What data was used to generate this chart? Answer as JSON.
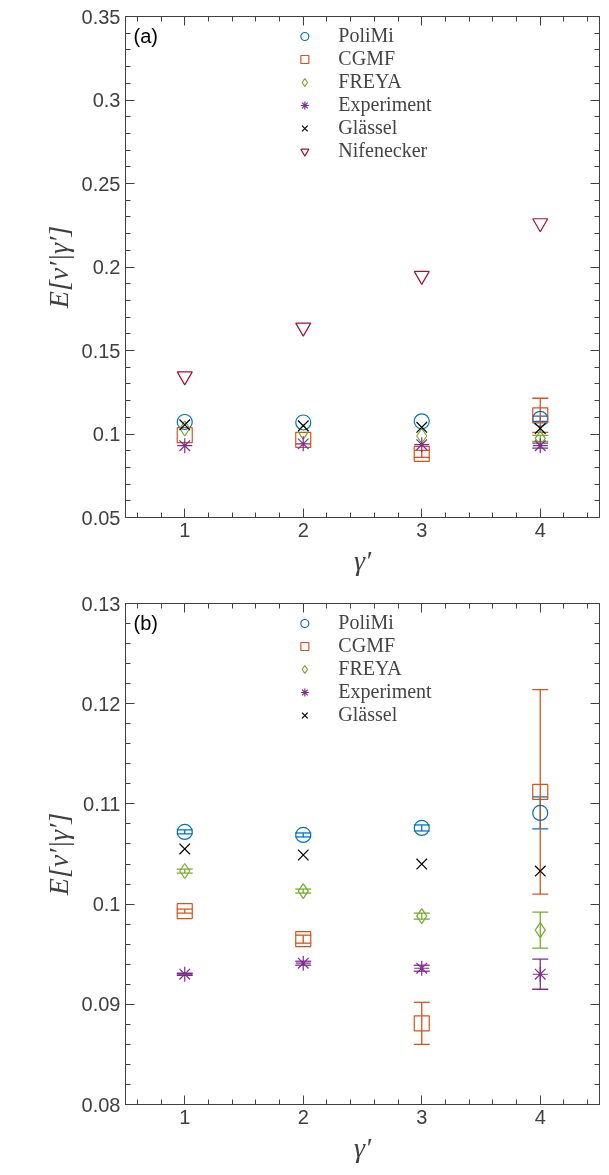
{
  "chart_data": [
    {
      "type": "scatter",
      "xlabel": "γ′",
      "ylabel": "E[ν′|γ′]",
      "annotations": [
        "(a)"
      ],
      "x": [
        1,
        2,
        3,
        4
      ],
      "xlim": [
        0.5,
        4.5
      ],
      "xticks": [
        1,
        2,
        3,
        4
      ],
      "ylim": [
        0.05,
        0.35
      ],
      "yticks": [
        0.05,
        0.1,
        0.15,
        0.2,
        0.25,
        0.3,
        0.35
      ],
      "grid": false,
      "legend": "top",
      "series": [
        {
          "name": "PoliMi",
          "color": "#0072bd",
          "marker": "circle",
          "values": [
            0.1072,
            0.1069,
            0.1076,
            0.1091
          ],
          "errors": [
            null,
            null,
            null,
            0.0016
          ]
        },
        {
          "name": "CGMF",
          "color": "#d95319",
          "marker": "square",
          "values": [
            0.0993,
            0.0965,
            0.0881,
            0.1112
          ],
          "errors": [
            null,
            null,
            0.0021,
            0.0102
          ]
        },
        {
          "name": "FREYA",
          "color": "#77ac30",
          "marker": "diamond",
          "values": [
            0.1033,
            0.1013,
            0.0988,
            0.0974
          ],
          "errors": [
            null,
            null,
            null,
            0.0018
          ]
        },
        {
          "name": "Experiment",
          "color": "#7e2f8e",
          "marker": "cross",
          "values": [
            0.093,
            0.0941,
            0.0936,
            0.093
          ],
          "errors": [
            null,
            null,
            null,
            0.0015
          ]
        },
        {
          "name": "Glässel",
          "color": "#000000",
          "values": [
            0.1055,
            0.1049,
            0.104,
            0.1033
          ]
        },
        {
          "name": "Nifenecker",
          "color": "#a2142f",
          "marker": "triangle",
          "values": [
            0.1346,
            0.1638,
            0.1948,
            0.2263
          ]
        }
      ]
    },
    {
      "type": "scatter",
      "xlabel": "γ′",
      "ylabel": "E[ν′|γ′]",
      "annotations": [
        "(b)"
      ],
      "x": [
        1,
        2,
        3,
        4
      ],
      "xlim": [
        0.5,
        4.5
      ],
      "xticks": [
        1,
        2,
        3,
        4
      ],
      "ylim": [
        0.08,
        0.13
      ],
      "yticks": [
        0.08,
        0.09,
        0.1,
        0.11,
        0.12,
        0.13
      ],
      "grid": false,
      "legend": "top",
      "series": [
        {
          "name": "PoliMi",
          "color": "#0072bd",
          "marker": "circle",
          "values": [
            0.1072,
            0.1069,
            0.1076,
            0.1091
          ],
          "errors": [
            0.0002,
            0.0002,
            0.0003,
            0.0016
          ]
        },
        {
          "name": "CGMF",
          "color": "#d95319",
          "marker": "square",
          "values": [
            0.0993,
            0.0965,
            0.0881,
            0.1112
          ],
          "errors": [
            0.0002,
            0.0004,
            0.0021,
            0.0102
          ]
        },
        {
          "name": "FREYA",
          "color": "#77ac30",
          "marker": "diamond",
          "values": [
            0.1033,
            0.1013,
            0.0988,
            0.0974
          ],
          "errors": [
            0.0002,
            0.0002,
            0.0003,
            0.0018
          ]
        },
        {
          "name": "Experiment",
          "color": "#7e2f8e",
          "marker": "cross",
          "values": [
            0.093,
            0.0941,
            0.0936,
            0.093
          ],
          "errors": [
            0.0001,
            0.0002,
            0.0003,
            0.0015
          ]
        },
        {
          "name": "Glässel",
          "color": "#000000",
          "values": [
            0.1055,
            0.1049,
            0.104,
            0.1033
          ]
        }
      ]
    }
  ]
}
